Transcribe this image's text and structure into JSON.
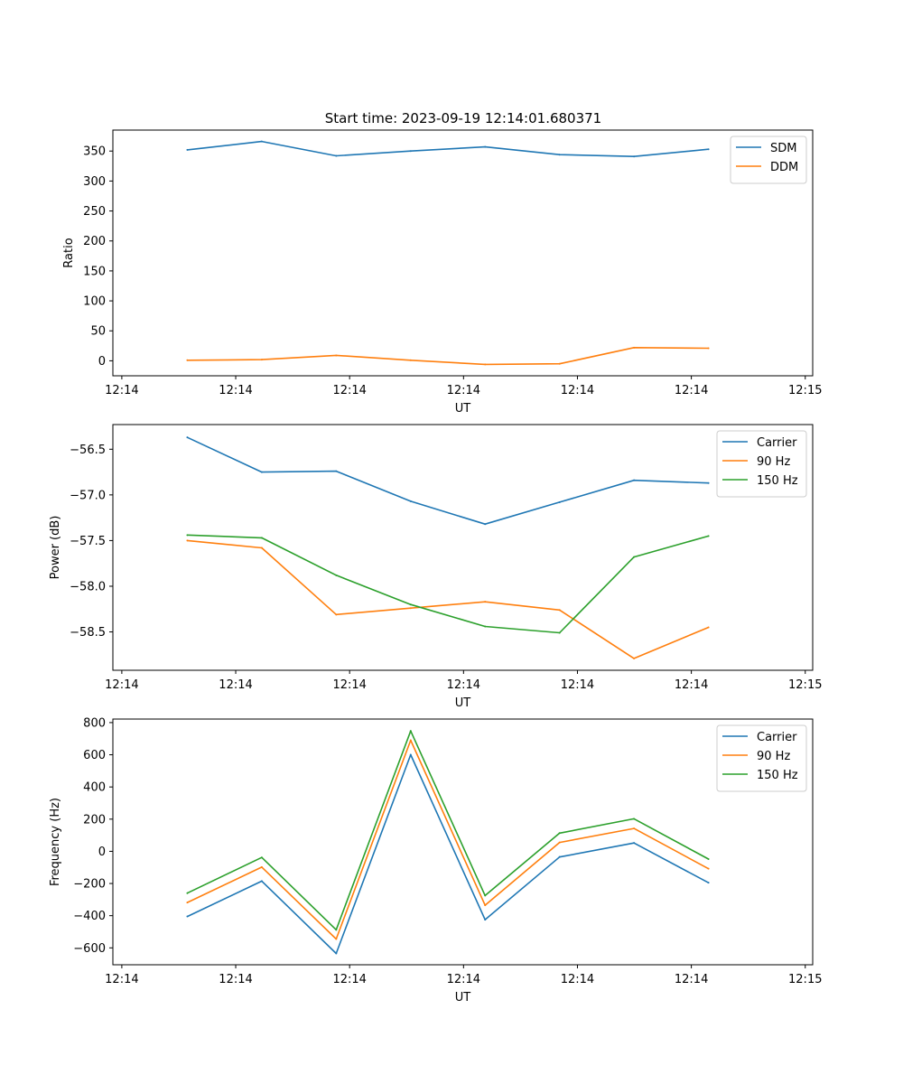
{
  "figure": {
    "title": "Start time: 2023-09-19 12:14:01.680371"
  },
  "colors": {
    "blue": "#1f77b4",
    "orange": "#ff7f0e",
    "green": "#2ca02c"
  },
  "chart_data": [
    {
      "type": "line",
      "title": "Start time: 2023-09-19 12:14:01.680371",
      "xlabel": "UT",
      "ylabel": "Ratio",
      "x": [
        1,
        2,
        3,
        4,
        5,
        6,
        7,
        8
      ],
      "xlim": [
        0,
        9.4
      ],
      "xticks": [
        0.12,
        1.65,
        3.18,
        4.71,
        6.24,
        7.77,
        9.3
      ],
      "xtick_labels": [
        "12:14",
        "12:14",
        "12:14",
        "12:14",
        "12:14",
        "12:14",
        "12:15"
      ],
      "ylim": [
        -25,
        385
      ],
      "yticks": [
        0,
        50,
        100,
        150,
        200,
        250,
        300,
        350
      ],
      "ytick_labels": [
        "0",
        "50",
        "100",
        "150",
        "200",
        "250",
        "300",
        "350"
      ],
      "legend": "upper-right",
      "series": [
        {
          "name": "SDM",
          "color": "#1f77b4",
          "values": [
            352,
            366,
            342,
            350,
            357,
            344,
            341,
            353
          ]
        },
        {
          "name": "DDM",
          "color": "#ff7f0e",
          "values": [
            1,
            2,
            9,
            1,
            -6,
            -5,
            22,
            21
          ]
        }
      ]
    },
    {
      "type": "line",
      "title": "",
      "xlabel": "UT",
      "ylabel": "Power (dB)",
      "x": [
        1,
        2,
        3,
        4,
        5,
        6,
        7,
        8
      ],
      "xlim": [
        0,
        9.4
      ],
      "xticks": [
        0.12,
        1.65,
        3.18,
        4.71,
        6.24,
        7.77,
        9.3
      ],
      "xtick_labels": [
        "12:14",
        "12:14",
        "12:14",
        "12:14",
        "12:14",
        "12:14",
        "12:15"
      ],
      "ylim": [
        -58.92,
        -56.23
      ],
      "yticks": [
        -58.5,
        -58.0,
        -57.5,
        -57.0,
        -56.5
      ],
      "ytick_labels": [
        "−58.5",
        "−58.0",
        "−57.5",
        "−57.0",
        "−56.5"
      ],
      "legend": "upper-right",
      "series": [
        {
          "name": "Carrier",
          "color": "#1f77b4",
          "values": [
            -56.37,
            -56.75,
            -56.74,
            -57.07,
            -57.32,
            -57.08,
            -56.84,
            -56.87
          ]
        },
        {
          "name": "90 Hz",
          "color": "#ff7f0e",
          "values": [
            -57.5,
            -57.58,
            -58.31,
            -58.24,
            -58.17,
            -58.26,
            -58.79,
            -58.45
          ]
        },
        {
          "name": "150 Hz",
          "color": "#2ca02c",
          "values": [
            -57.44,
            -57.47,
            -57.88,
            -58.2,
            -58.44,
            -58.51,
            -57.68,
            -57.45
          ]
        }
      ]
    },
    {
      "type": "line",
      "title": "",
      "xlabel": "UT",
      "ylabel": "Frequency (Hz)",
      "x": [
        1,
        2,
        3,
        4,
        5,
        6,
        7,
        8
      ],
      "xlim": [
        0,
        9.4
      ],
      "xticks": [
        0.12,
        1.65,
        3.18,
        4.71,
        6.24,
        7.77,
        9.3
      ],
      "xtick_labels": [
        "12:14",
        "12:14",
        "12:14",
        "12:14",
        "12:14",
        "12:14",
        "12:15"
      ],
      "ylim": [
        -705,
        822
      ],
      "yticks": [
        -600,
        -400,
        -200,
        0,
        200,
        400,
        600,
        800
      ],
      "ytick_labels": [
        "−600",
        "−400",
        "−200",
        "0",
        "200",
        "400",
        "600",
        "800"
      ],
      "legend": "upper-right",
      "series": [
        {
          "name": "Carrier",
          "color": "#1f77b4",
          "values": [
            -405,
            -185,
            -635,
            600,
            -425,
            -35,
            52,
            -195
          ]
        },
        {
          "name": "90 Hz",
          "color": "#ff7f0e",
          "values": [
            -318,
            -98,
            -545,
            690,
            -335,
            55,
            142,
            -108
          ]
        },
        {
          "name": "150 Hz",
          "color": "#2ca02c",
          "values": [
            -260,
            -38,
            -488,
            748,
            -275,
            113,
            202,
            -48
          ]
        }
      ]
    }
  ]
}
